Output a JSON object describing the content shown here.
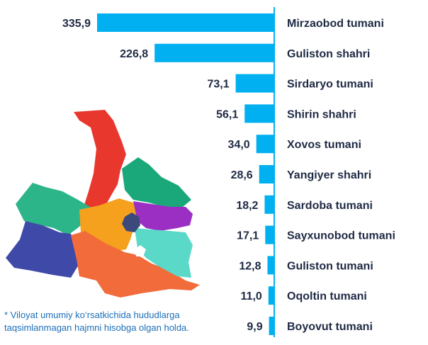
{
  "chart_data": {
    "type": "bar",
    "orientation": "horizontal",
    "categories": [
      "Mirzaobod tumani",
      "Guliston shahri",
      "Sirdaryo tumani",
      "Shirin shahri",
      "Xovos tumani",
      "Yangiyer shahri",
      "Sardoba tumani",
      "Sayxunobod tumani",
      "Guliston tumani",
      "Oqoltin tumani",
      "Boyovut tumani"
    ],
    "values": [
      335.9,
      226.8,
      73.1,
      56.1,
      34.0,
      28.6,
      18.2,
      17.1,
      12.8,
      11.0,
      9.9
    ],
    "value_labels": [
      "335,9",
      "226,8",
      "73,1",
      "56,1",
      "34,0",
      "28,6",
      "18,2",
      "17,1",
      "12,8",
      "11,0",
      "9,9"
    ],
    "bar_direction": "right-to-left",
    "xlim": [
      0,
      335.9
    ],
    "grid": false,
    "legend": "none",
    "colors": {
      "bar": "#00b0f0",
      "axis": "#00b0f0",
      "value_text": "#1f2a44",
      "category_text": "#1f2a44"
    }
  },
  "footnote": {
    "line1": "* Viloyat umumiy ko‘rsatkichida hududlarga",
    "line2": "taqsimlanmagan hajmni hisobga olgan holda."
  },
  "map": {
    "colors": [
      "#e8382d",
      "#1aa87a",
      "#2db58a",
      "#f5a11e",
      "#9b2fc4",
      "#3f4aa8",
      "#f26b3a",
      "#5ad8c8",
      "#3b4a7a"
    ]
  }
}
